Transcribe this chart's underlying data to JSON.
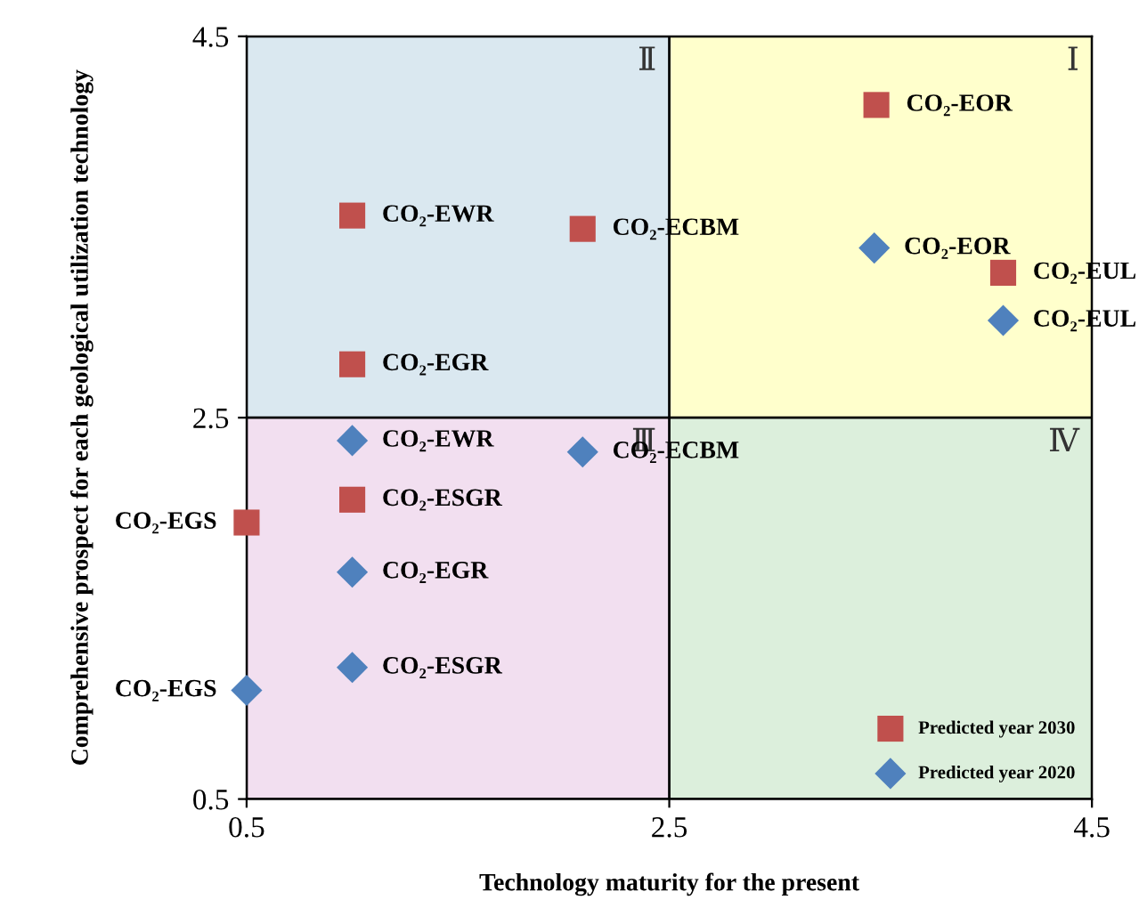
{
  "chart_data": {
    "type": "scatter",
    "xlabel": "Technology maturity for the present",
    "ylabel": "Comprehensive prospect for each geological utilization technology",
    "xlim": [
      0.5,
      4.5
    ],
    "ylim": [
      0.5,
      4.5
    ],
    "xticks": [
      0.5,
      2.5,
      4.5
    ],
    "yticks": [
      0.5,
      2.5,
      4.5
    ],
    "grid": true,
    "legend": "bottom right",
    "series": [
      {
        "name": "Predicted year 2030",
        "color": "#c0504d",
        "marker": "square",
        "x": [
          3.48,
          1.0,
          2.09,
          4.08,
          1.0,
          1.0,
          0.5
        ],
        "values": [
          4.14,
          3.56,
          3.49,
          3.26,
          2.78,
          2.07,
          1.95
        ]
      },
      {
        "name": "Predicted year 2020",
        "color": "#4f81bd",
        "marker": "diamond",
        "x": [
          3.47,
          4.08,
          1.0,
          2.09,
          1.0,
          1.0,
          0.5
        ],
        "values": [
          3.39,
          3.01,
          2.38,
          2.32,
          1.69,
          1.19,
          1.07
        ]
      }
    ],
    "annotations": [
      "Ⅰ",
      "Ⅱ",
      "Ⅲ",
      "Ⅳ",
      {
        "text": "CO₂-EOR",
        "x": 3.48,
        "y": 4.14
      },
      {
        "text": "CO₂-EWR",
        "x": 1.0,
        "y": 3.56
      },
      {
        "text": "CO₂-ECBM",
        "x": 2.09,
        "y": 3.49
      },
      {
        "text": "CO₂-EUL",
        "x": 4.08,
        "y": 3.26
      },
      {
        "text": "CO₂-EGR",
        "x": 1.0,
        "y": 2.78
      },
      {
        "text": "CO₂-ESGR",
        "x": 1.0,
        "y": 2.07
      },
      {
        "text": "CO₂-EGS",
        "x": 0.5,
        "y": 1.95
      },
      {
        "text": "CO₂-EOR",
        "x": 3.47,
        "y": 3.39
      },
      {
        "text": "CO₂-EUL",
        "x": 4.08,
        "y": 3.01
      },
      {
        "text": "CO₂-EWR",
        "x": 1.0,
        "y": 2.38
      },
      {
        "text": "CO₂-ECBM",
        "x": 2.09,
        "y": 2.32
      },
      {
        "text": "CO₂-EGR",
        "x": 1.0,
        "y": 1.69
      },
      {
        "text": "CO₂-ESGR",
        "x": 1.0,
        "y": 1.19
      },
      {
        "text": "CO₂-EGS",
        "x": 0.5,
        "y": 1.07
      }
    ]
  }
}
